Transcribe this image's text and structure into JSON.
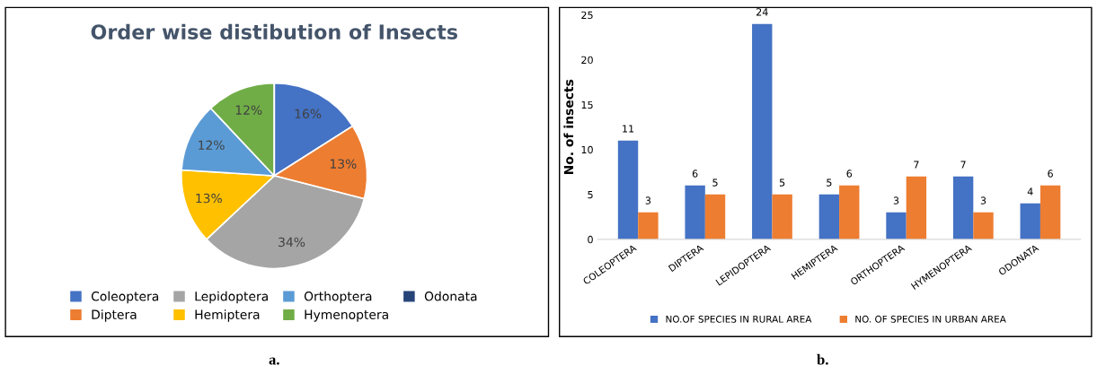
{
  "chart_data": [
    {
      "type": "pie",
      "title": "Order wise distibution of Insects",
      "categories": [
        "Coleoptera",
        "Diptera",
        "Lepidoptera",
        "Hemiptera",
        "Orthoptera",
        "Hymenoptera",
        "Odonata"
      ],
      "values": [
        16,
        13,
        34,
        13,
        12,
        12,
        0
      ],
      "colors": [
        "#4472c4",
        "#ed7d31",
        "#a5a5a5",
        "#ffc000",
        "#5b9bd5",
        "#70ad47",
        "#264478"
      ],
      "value_labels": [
        "16%",
        "13%",
        "34%",
        "13%",
        "12%",
        "12%",
        null
      ],
      "legend": "bottom",
      "annotations": [
        "a."
      ]
    },
    {
      "type": "bar",
      "ylabel": "No. of insects",
      "categories": [
        "COLEOPTERA",
        "DIPTERA",
        "LEPIDOPTERA",
        "HEMIPTERA",
        "ORTHOPTERA",
        "HYMENOPTERA",
        "ODONATA"
      ],
      "series": [
        {
          "name": "NO.OF SPECIES IN RURAL AREA",
          "color": "#4472c4",
          "values": [
            11,
            6,
            24,
            5,
            3,
            7,
            4
          ]
        },
        {
          "name": "NO. OF SPECIES IN URBAN AREA",
          "color": "#ed7d31",
          "values": [
            3,
            5,
            5,
            6,
            7,
            3,
            6
          ]
        }
      ],
      "ylim": [
        0,
        25
      ],
      "yticks": [
        0,
        5,
        10,
        15,
        20,
        25
      ],
      "grid": false,
      "legend": "bottom",
      "data_labels": true,
      "annotations": [
        "b."
      ]
    }
  ]
}
